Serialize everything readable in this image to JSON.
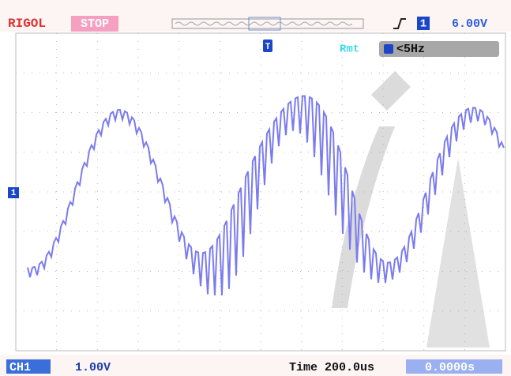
{
  "header": {
    "brand": "RIGOL",
    "status": "STOP",
    "trigger_source": "1",
    "trigger_level": "6.00V"
  },
  "readouts": {
    "remote": "Rmt",
    "frequency": "<5Hz",
    "trigger_marker": "T",
    "channel_marker": "1"
  },
  "footer": {
    "channel": "CH1",
    "volts_per_div": "1.00V",
    "timebase": "Time 200.0us",
    "trigger_offset": "0.0000s"
  }
}
